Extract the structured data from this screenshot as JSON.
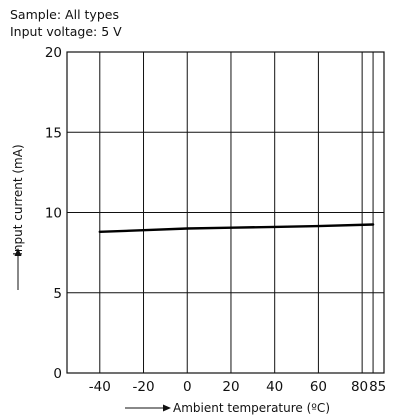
{
  "notes": {
    "sample": "Sample: All types",
    "voltage": "Input voltage: 5 V"
  },
  "colors": {
    "axes": "#111111",
    "grid": "#111111",
    "series": "#000000"
  },
  "chart_data": {
    "type": "line",
    "title": "",
    "xlabel": "Ambient temperature (ºC)",
    "ylabel": "Input current (mA)",
    "xlim": [
      -55,
      90
    ],
    "ylim": [
      0,
      20
    ],
    "x_ticks": [
      -40,
      -20,
      0,
      20,
      40,
      60,
      80,
      85
    ],
    "x_tick_labels": [
      "-40",
      "-20",
      "0",
      "20",
      "40",
      "60",
      "80",
      "85"
    ],
    "y_ticks": [
      0,
      5,
      10,
      15,
      20
    ],
    "y_tick_labels": [
      "0",
      "5",
      "10",
      "15",
      "20"
    ],
    "grid": true,
    "series": [
      {
        "x": [
          -40,
          -20,
          0,
          20,
          40,
          60,
          85
        ],
        "y": [
          8.8,
          8.9,
          9.0,
          9.05,
          9.1,
          9.15,
          9.25
        ]
      }
    ]
  }
}
